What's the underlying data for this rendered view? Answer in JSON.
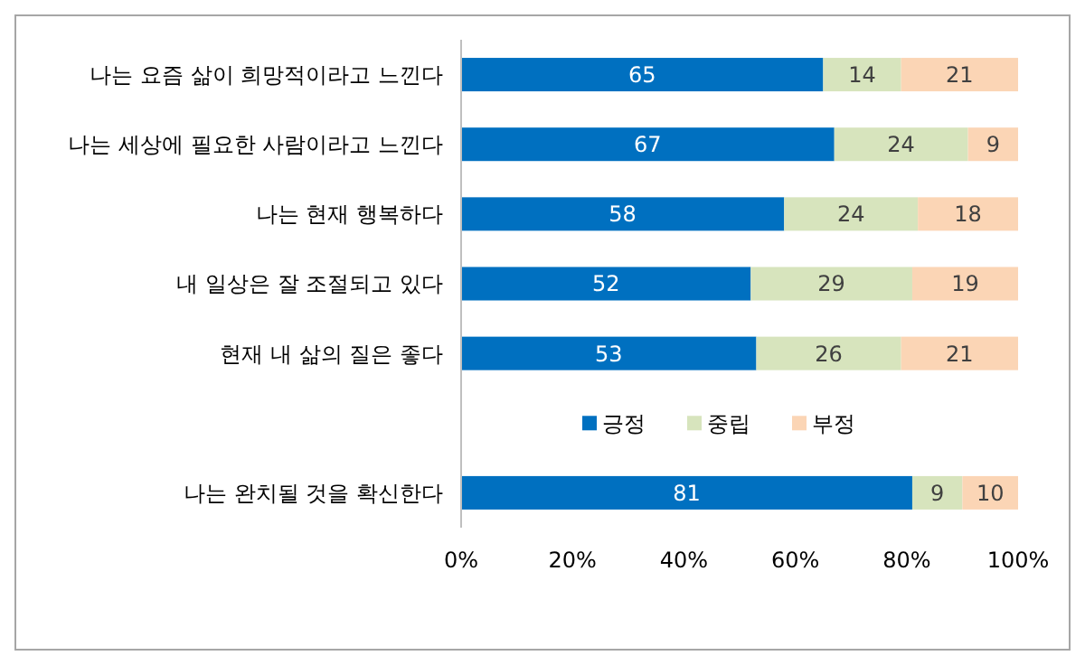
{
  "chart_data": {
    "type": "bar",
    "orientation": "horizontal",
    "stacked": true,
    "categories": [
      "나는 요즘 삶이 희망적이라고 느낀다",
      "나는 세상에 필요한 사람이라고 느낀다",
      "나는 현재 행복하다",
      "내 일상은 잘 조절되고 있다",
      "현재 내 삶의 질은 좋다",
      null,
      "나는 완치될 것을 확신한다"
    ],
    "series": [
      {
        "name": "긍정",
        "color": "#0070c0",
        "values": [
          65,
          67,
          58,
          52,
          53,
          null,
          81
        ]
      },
      {
        "name": "중립",
        "color": "#d7e4bd",
        "values": [
          14,
          24,
          24,
          29,
          26,
          null,
          9
        ]
      },
      {
        "name": "부정",
        "color": "#fbd5b5",
        "values": [
          21,
          9,
          18,
          19,
          21,
          null,
          10
        ]
      }
    ],
    "xlim": [
      0,
      100
    ],
    "xticks": [
      {
        "value": 0,
        "label": "0%"
      },
      {
        "value": 20,
        "label": "20%"
      },
      {
        "value": 40,
        "label": "40%"
      },
      {
        "value": 60,
        "label": "60%"
      },
      {
        "value": 80,
        "label": "80%"
      },
      {
        "value": 100,
        "label": "100%"
      }
    ],
    "data_labels": true,
    "legend": "bottom",
    "grid": false
  }
}
